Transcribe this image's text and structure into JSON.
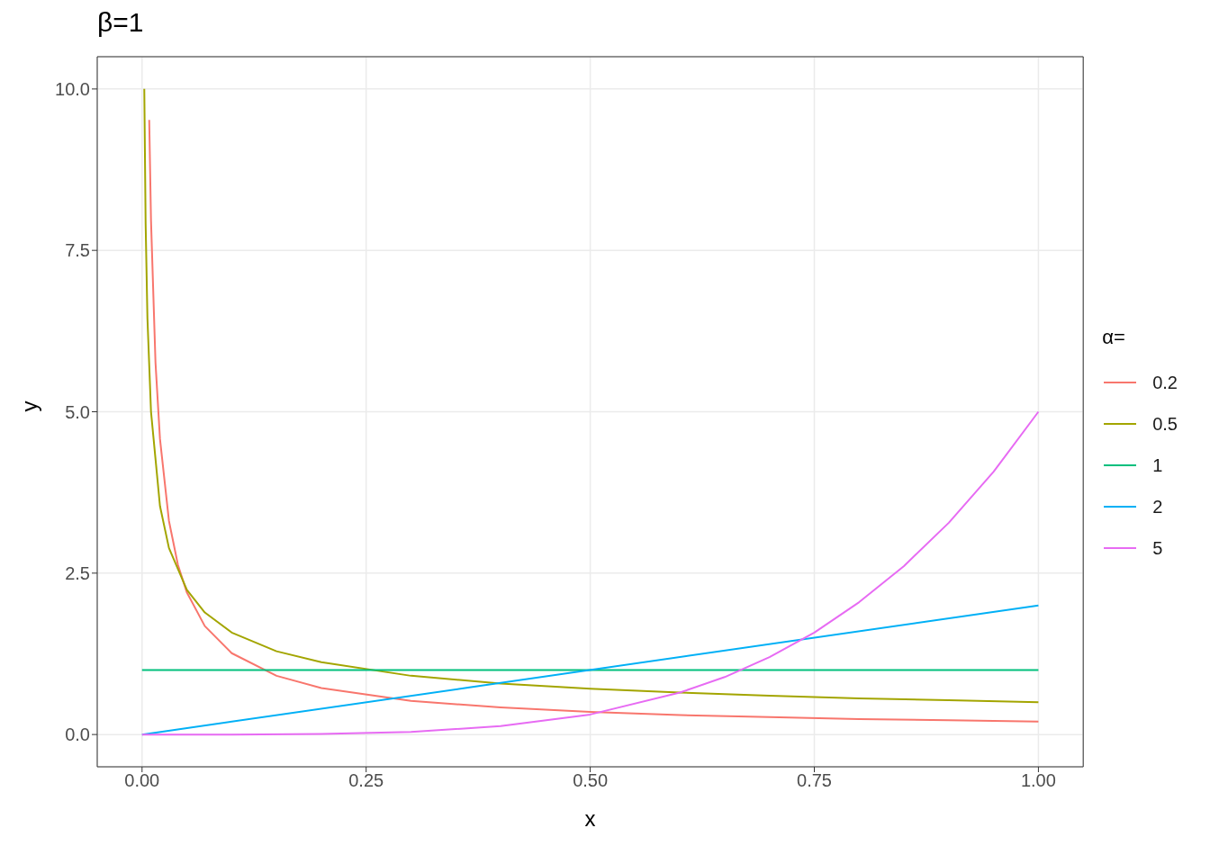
{
  "chart_data": {
    "type": "line",
    "title": "β=1",
    "xlabel": "x",
    "ylabel": "y",
    "legend_title": "α=",
    "legend": "right",
    "grid": true,
    "line_style": "solid",
    "marker": "none",
    "xlim": [
      -0.05,
      1.05
    ],
    "ylim": [
      -0.5,
      10.5
    ],
    "xticks": [
      {
        "value": 0,
        "label": "0.00"
      },
      {
        "value": 0.25,
        "label": "0.25"
      },
      {
        "value": 0.5,
        "label": "0.50"
      },
      {
        "value": 0.75,
        "label": "0.75"
      },
      {
        "value": 1,
        "label": "1.00"
      }
    ],
    "yticks": [
      {
        "value": 0,
        "label": "0.0"
      },
      {
        "value": 2.5,
        "label": "2.5"
      },
      {
        "value": 5,
        "label": "5.0"
      },
      {
        "value": 7.5,
        "label": "7.5"
      },
      {
        "value": 10,
        "label": "10.0"
      }
    ],
    "series": [
      {
        "name": "0.2",
        "color": "#f8766d",
        "x": [
          0.008,
          0.01,
          0.015,
          0.02,
          0.03,
          0.04,
          0.05,
          0.07,
          0.1,
          0.15,
          0.2,
          0.3,
          0.4,
          0.5,
          0.6,
          0.7,
          0.8,
          0.9,
          1
        ],
        "values": [
          9.52,
          7.96,
          5.76,
          4.58,
          3.31,
          2.63,
          2.2,
          1.68,
          1.26,
          0.91,
          0.72,
          0.52,
          0.42,
          0.35,
          0.3,
          0.27,
          0.24,
          0.22,
          0.2
        ]
      },
      {
        "name": "0.5",
        "color": "#a3a500",
        "x": [
          0.0025,
          0.004,
          0.006,
          0.01,
          0.02,
          0.03,
          0.05,
          0.07,
          0.1,
          0.15,
          0.2,
          0.3,
          0.4,
          0.5,
          0.6,
          0.7,
          0.8,
          0.9,
          1
        ],
        "values": [
          10,
          7.91,
          6.45,
          5,
          3.54,
          2.89,
          2.24,
          1.89,
          1.58,
          1.29,
          1.12,
          0.91,
          0.79,
          0.71,
          0.65,
          0.6,
          0.56,
          0.53,
          0.5
        ]
      },
      {
        "name": "1",
        "color": "#00bf7d",
        "x": [
          0,
          1
        ],
        "values": [
          1,
          1
        ]
      },
      {
        "name": "2",
        "color": "#00b0f6",
        "x": [
          0,
          1
        ],
        "values": [
          0,
          2
        ]
      },
      {
        "name": "5",
        "color": "#e76bf3",
        "x": [
          0,
          0.1,
          0.2,
          0.3,
          0.4,
          0.5,
          0.6,
          0.65,
          0.7,
          0.75,
          0.8,
          0.85,
          0.9,
          0.95,
          1
        ],
        "values": [
          0,
          0,
          0.01,
          0.04,
          0.13,
          0.31,
          0.65,
          0.89,
          1.2,
          1.58,
          2.05,
          2.61,
          3.28,
          4.07,
          5
        ]
      }
    ]
  }
}
